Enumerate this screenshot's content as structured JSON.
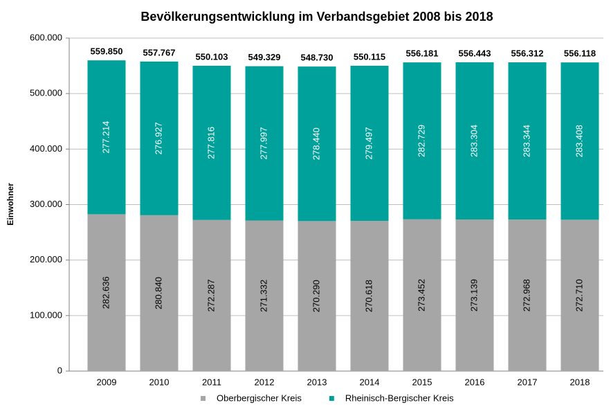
{
  "chart_data": {
    "type": "stacked_bar",
    "title": "Bevölkerungsentwicklung im Verbandsgebiet 2008 bis 2018",
    "y_label": "Einwohner",
    "categories": [
      "2009",
      "2010",
      "2011",
      "2012",
      "2013",
      "2014",
      "2015",
      "2016",
      "2017",
      "2018"
    ],
    "series": [
      {
        "name": "Oberbergischer Kreis",
        "color": "#a6a6a6",
        "values": [
          282636,
          280840,
          272287,
          271332,
          270290,
          270618,
          273452,
          273139,
          272968,
          272710
        ],
        "value_labels": [
          "282.636",
          "280.840",
          "272.287",
          "271.332",
          "270.290",
          "270.618",
          "273.452",
          "273.139",
          "272.968",
          "272.710"
        ]
      },
      {
        "name": "Rheinisch-Bergischer Kreis",
        "color": "#00a19a",
        "values": [
          277214,
          276927,
          277816,
          277997,
          278440,
          279497,
          282729,
          283304,
          283344,
          283408
        ],
        "value_labels": [
          "277.214",
          "276.927",
          "277.816",
          "277.997",
          "278.440",
          "279.497",
          "282.729",
          "283.304",
          "283.344",
          "283.408"
        ]
      }
    ],
    "totals": {
      "values": [
        559850,
        557767,
        550103,
        549329,
        548730,
        550115,
        556181,
        556443,
        556312,
        556118
      ],
      "value_labels": [
        "559.850",
        "557.767",
        "550.103",
        "549.329",
        "548.730",
        "550.115",
        "556.181",
        "556.443",
        "556.312",
        "556.118"
      ]
    },
    "ylim": [
      0,
      600000
    ],
    "yticks": [
      0,
      {
        "value": 100000,
        "label": "100.000"
      },
      {
        "value": 200000,
        "label": "200.000"
      },
      {
        "value": 300000,
        "label": "300.000"
      },
      {
        "value": 400000,
        "label": "400.000"
      },
      {
        "value": 500000,
        "label": "500.000"
      },
      {
        "value": 600000,
        "label": "600.000"
      }
    ],
    "grid": true,
    "legend": "bottom"
  }
}
